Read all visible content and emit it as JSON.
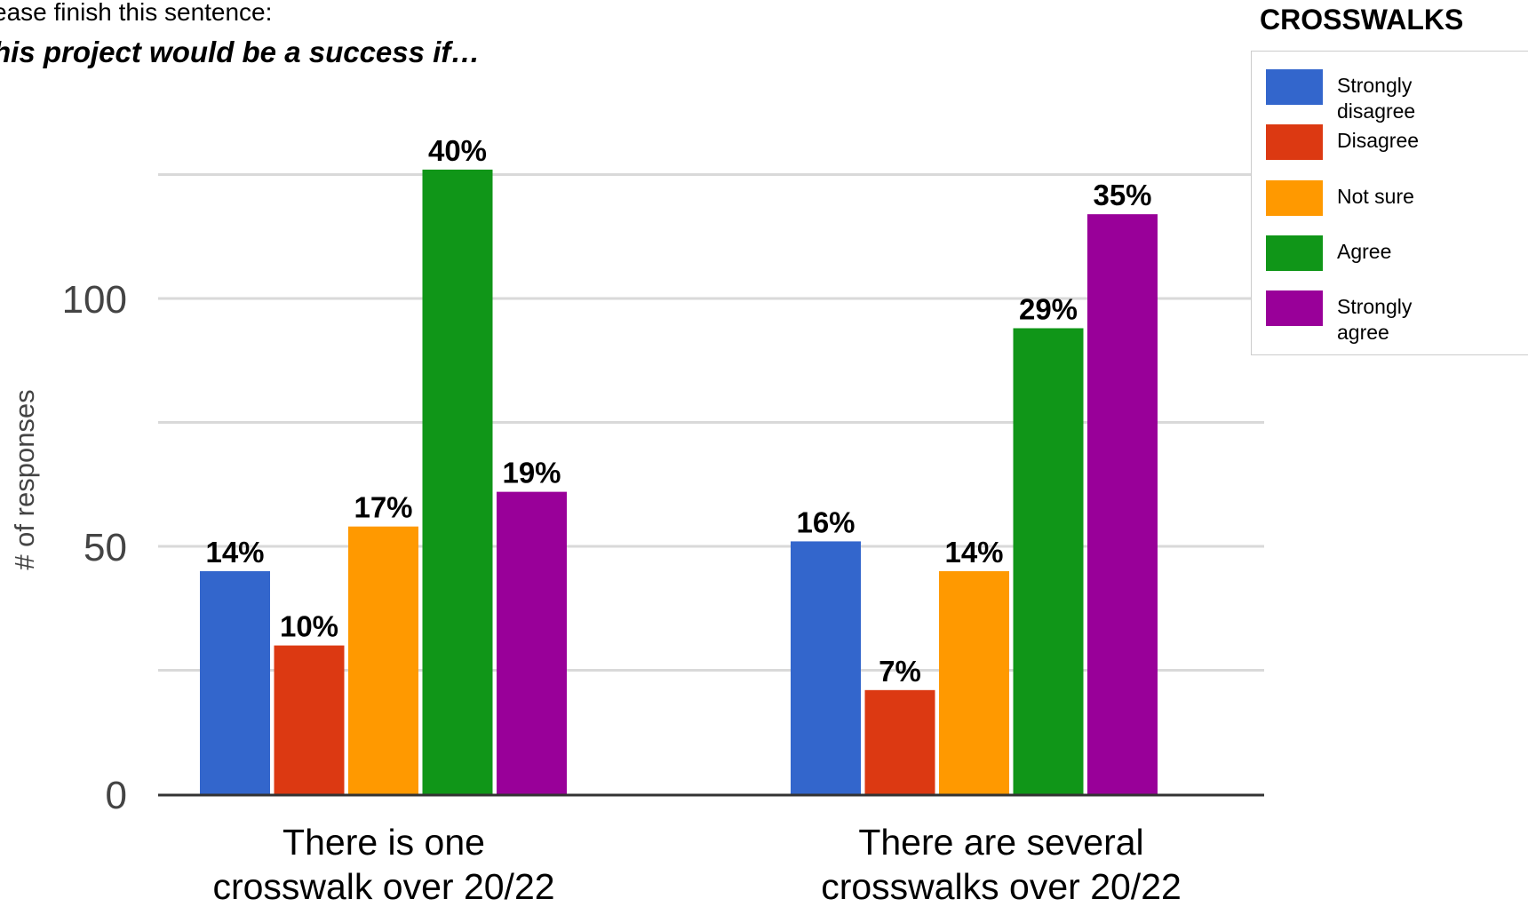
{
  "prompt": {
    "line1": "ease finish this sentence:",
    "line2": "his project would be a success if…"
  },
  "chart_data": {
    "type": "bar",
    "title": "CROSSWALKS",
    "ylabel": "# of responses",
    "xlabel": "",
    "ylim": [
      0,
      125
    ],
    "yticks": [
      0,
      50,
      100
    ],
    "grid": true,
    "legend_position": "top-right",
    "categories": [
      [
        "There is one",
        "crosswalk over 20/22"
      ],
      [
        "There are several",
        "crosswalks over 20/22"
      ]
    ],
    "series": [
      {
        "name": "Strongly disagree",
        "legend_lines": [
          "Strongly",
          "disagree"
        ],
        "color": "#3366cc",
        "values": [
          45,
          51
        ],
        "labels": [
          "14%",
          "16%"
        ]
      },
      {
        "name": "Disagree",
        "legend_lines": [
          "Disagree"
        ],
        "color": "#dc3912",
        "values": [
          30,
          21
        ],
        "labels": [
          "10%",
          "7%"
        ]
      },
      {
        "name": "Not sure",
        "legend_lines": [
          "Not sure"
        ],
        "color": "#ff9900",
        "values": [
          54,
          45
        ],
        "labels": [
          "17%",
          "14%"
        ]
      },
      {
        "name": "Agree",
        "legend_lines": [
          "Agree"
        ],
        "color": "#109618",
        "values": [
          126,
          94
        ],
        "labels": [
          "40%",
          "29%"
        ]
      },
      {
        "name": "Strongly agree",
        "legend_lines": [
          "Strongly",
          "agree"
        ],
        "color": "#990099",
        "values": [
          61,
          117
        ],
        "labels": [
          "19%",
          "35%"
        ]
      }
    ]
  }
}
